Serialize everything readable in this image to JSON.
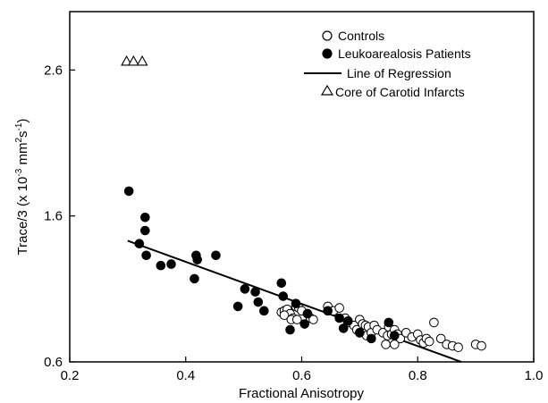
{
  "chart_data": {
    "type": "scatter",
    "xlabel": "Fractional Anisotropy",
    "ylabel": "Trace/3",
    "ylabel_units_prefix": "(x 10",
    "ylabel_units_exp1": "-3",
    "ylabel_units_mid": " mm",
    "ylabel_units_exp2": "2",
    "ylabel_units_s": "s",
    "ylabel_units_exp3": "-1",
    "ylabel_units_suffix": ")",
    "xlim": [
      0.2,
      1.0
    ],
    "ylim": [
      0.6,
      3.0
    ],
    "xticks": [
      0.2,
      0.4,
      0.6,
      0.8,
      1.0
    ],
    "xtick_labels": [
      "0.2",
      "0.4",
      "0.6",
      "0.8",
      "1.0"
    ],
    "yticks": [
      0.6,
      1.6,
      2.6
    ],
    "ytick_labels": [
      "0.6",
      "1.6",
      "2.6"
    ],
    "legend_position": "top-right",
    "series": [
      {
        "name": "Controls",
        "marker": "open-circle",
        "points": [
          [
            0.565,
            0.94
          ],
          [
            0.57,
            0.95
          ],
          [
            0.575,
            0.96
          ],
          [
            0.58,
            0.93
          ],
          [
            0.585,
            0.9
          ],
          [
            0.59,
            0.98
          ],
          [
            0.595,
            0.97
          ],
          [
            0.6,
            0.95
          ],
          [
            0.61,
            0.93
          ],
          [
            0.615,
            0.9
          ],
          [
            0.57,
            0.92
          ],
          [
            0.582,
            0.89
          ],
          [
            0.592,
            0.89
          ],
          [
            0.62,
            0.89
          ],
          [
            0.645,
            0.98
          ],
          [
            0.655,
            0.95
          ],
          [
            0.665,
            0.97
          ],
          [
            0.675,
            0.9
          ],
          [
            0.68,
            0.87
          ],
          [
            0.69,
            0.85
          ],
          [
            0.695,
            0.82
          ],
          [
            0.7,
            0.8
          ],
          [
            0.7,
            0.89
          ],
          [
            0.705,
            0.86
          ],
          [
            0.71,
            0.85
          ],
          [
            0.712,
            0.78
          ],
          [
            0.715,
            0.84
          ],
          [
            0.72,
            0.8
          ],
          [
            0.725,
            0.85
          ],
          [
            0.73,
            0.82
          ],
          [
            0.74,
            0.8
          ],
          [
            0.748,
            0.78
          ],
          [
            0.75,
            0.84
          ],
          [
            0.755,
            0.79
          ],
          [
            0.76,
            0.82
          ],
          [
            0.765,
            0.79
          ],
          [
            0.77,
            0.76
          ],
          [
            0.78,
            0.8
          ],
          [
            0.79,
            0.77
          ],
          [
            0.8,
            0.79
          ],
          [
            0.805,
            0.75
          ],
          [
            0.81,
            0.73
          ],
          [
            0.815,
            0.76
          ],
          [
            0.82,
            0.74
          ],
          [
            0.828,
            0.87
          ],
          [
            0.84,
            0.76
          ],
          [
            0.85,
            0.72
          ],
          [
            0.86,
            0.71
          ],
          [
            0.87,
            0.7
          ],
          [
            0.9,
            0.72
          ],
          [
            0.91,
            0.71
          ],
          [
            0.76,
            0.72
          ],
          [
            0.745,
            0.72
          ]
        ]
      },
      {
        "name": "Leukoarealosis Patients",
        "marker": "filled-circle",
        "points": [
          [
            0.302,
            1.77
          ],
          [
            0.32,
            1.41
          ],
          [
            0.33,
            1.59
          ],
          [
            0.33,
            1.5
          ],
          [
            0.332,
            1.33
          ],
          [
            0.357,
            1.26
          ],
          [
            0.375,
            1.27
          ],
          [
            0.415,
            1.17
          ],
          [
            0.418,
            1.33
          ],
          [
            0.42,
            1.3
          ],
          [
            0.452,
            1.33
          ],
          [
            0.49,
            0.98
          ],
          [
            0.502,
            1.1
          ],
          [
            0.52,
            1.08
          ],
          [
            0.525,
            1.01
          ],
          [
            0.535,
            0.95
          ],
          [
            0.565,
            1.14
          ],
          [
            0.568,
            1.05
          ],
          [
            0.58,
            0.82
          ],
          [
            0.59,
            1.0
          ],
          [
            0.605,
            0.86
          ],
          [
            0.61,
            0.93
          ],
          [
            0.645,
            0.95
          ],
          [
            0.665,
            0.9
          ],
          [
            0.672,
            0.83
          ],
          [
            0.68,
            0.88
          ],
          [
            0.7,
            0.8
          ],
          [
            0.72,
            0.76
          ],
          [
            0.75,
            0.87
          ],
          [
            0.76,
            0.78
          ]
        ]
      },
      {
        "name": "Core of Carotid Infarcts",
        "marker": "open-triangle",
        "points": [
          [
            0.298,
            2.66
          ],
          [
            0.31,
            2.66
          ],
          [
            0.325,
            2.66
          ]
        ]
      }
    ],
    "regression_line": {
      "name": "Line of Regression",
      "x": [
        0.3,
        0.875
      ],
      "y": [
        1.43,
        0.6
      ]
    }
  }
}
